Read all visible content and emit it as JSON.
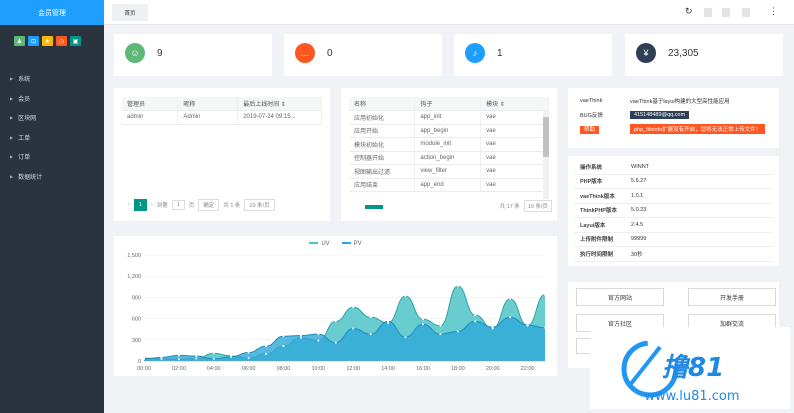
{
  "sidebar": {
    "brand": "会员管理",
    "quick_icons": [
      {
        "name": "user-icon",
        "glyph": "♟",
        "color": "#5fb878"
      },
      {
        "name": "lock-icon",
        "glyph": "⊡",
        "color": "#1e9fff"
      },
      {
        "name": "star-icon",
        "glyph": "★",
        "color": "#ffb800"
      },
      {
        "name": "clock-icon",
        "glyph": "◷",
        "color": "#ff5722"
      },
      {
        "name": "cart-icon",
        "glyph": "▣",
        "color": "#009688"
      }
    ],
    "menu": [
      "系统",
      "会员",
      "区块网",
      "工单",
      "订单",
      "数据统计"
    ]
  },
  "header": {
    "tab": "首页"
  },
  "stats": [
    {
      "value": "9",
      "icon": "user-group-icon",
      "glyph": "☺",
      "color": "#5fb878"
    },
    {
      "value": "0",
      "icon": "message-icon",
      "glyph": "…",
      "color": "#ff5722"
    },
    {
      "value": "1",
      "icon": "bell-icon",
      "glyph": "♪",
      "color": "#1e9fff"
    },
    {
      "value": "23,305",
      "icon": "money-icon",
      "glyph": "¥",
      "color": "#2f4056"
    }
  ],
  "admin_table": {
    "headers": [
      "管理员",
      "昵称",
      "最后上线时间 ⇕"
    ],
    "rows": [
      [
        "admin",
        "Admin",
        "2019-07-24 09:15..."
      ]
    ],
    "pager": {
      "page": "1",
      "goto_label": "到第",
      "page_suffix": "页",
      "confirm": "确定",
      "total": "共 1 条",
      "per_page": "10 条/页"
    }
  },
  "hook_table": {
    "headers": [
      "名称",
      "钩子",
      "模块 ⇕"
    ],
    "rows": [
      [
        "应用初始化",
        "app_init",
        "vae"
      ],
      [
        "应用开始",
        "app_begin",
        "vae"
      ],
      [
        "模块初始化",
        "module_init",
        "vae"
      ],
      [
        "控制器开始",
        "action_begin",
        "vae"
      ],
      [
        "视图输出过滤",
        "view_filter",
        "vae"
      ],
      [
        "应用结束",
        "app_end",
        "vae"
      ]
    ],
    "total": "共 17 条",
    "per_page": "10 条/页"
  },
  "about": {
    "rows": [
      {
        "k": "vaeThink",
        "v": "vaeThink基于layui构建的大型高性能应用",
        "style": "plain"
      },
      {
        "k": "BUG反馈",
        "v": "415148489@qq.com",
        "style": "dark"
      },
      {
        "k": "帮助",
        "v": "php_fileinfo扩展没有开启，您将无法正常上传文件！",
        "style": "red",
        "kstyle": "red"
      }
    ]
  },
  "sysinfo": {
    "rows": [
      [
        "操作系统",
        "WINNT"
      ],
      [
        "PHP版本",
        "5.6.27"
      ],
      [
        "vaeThink版本",
        "1.0.1"
      ],
      [
        "ThinkPHP版本",
        "5.0.23"
      ],
      [
        "Layui版本",
        "2.4.5"
      ],
      [
        "上传附件限制",
        "99999"
      ],
      [
        "执行时间限制",
        "30秒"
      ]
    ]
  },
  "links": [
    "官方网站",
    "开发手册",
    "官方社区",
    "加群交流"
  ],
  "chart_data": {
    "type": "area",
    "series": [
      {
        "name": "UV",
        "color": "#4fc3c7"
      },
      {
        "name": "PV",
        "color": "#2ea8d8"
      }
    ],
    "x": [
      "00:00",
      "01:00",
      "02:00",
      "03:00",
      "04:00",
      "05:00",
      "06:00",
      "07:00",
      "08:00",
      "09:00",
      "10:00",
      "11:00",
      "12:00",
      "13:00",
      "14:00",
      "15:00",
      "16:00",
      "17:00",
      "18:00",
      "19:00",
      "20:00",
      "21:00",
      "22:00",
      "23:00"
    ],
    "xticks": [
      "00:00",
      "02:00",
      "04:00",
      "06:00",
      "08:00",
      "10:00",
      "12:00",
      "14:00",
      "16:00",
      "18:00",
      "20:00",
      "22:00"
    ],
    "uv": [
      40,
      30,
      25,
      35,
      110,
      70,
      40,
      100,
      210,
      330,
      290,
      560,
      760,
      620,
      540,
      920,
      590,
      500,
      1060,
      650,
      460,
      880,
      500,
      940
    ],
    "pv": [
      30,
      50,
      80,
      70,
      30,
      60,
      120,
      210,
      350,
      360,
      380,
      260,
      460,
      380,
      560,
      340,
      520,
      380,
      420,
      560,
      480,
      620,
      510,
      470
    ],
    "ylim": [
      0,
      1500
    ],
    "yticks": [
      "0",
      "300",
      "600",
      "900",
      "1,200",
      "1,500"
    ],
    "grid": true,
    "legend": "top-center"
  },
  "watermark": {
    "text": "撸81",
    "url": "www.lu81.com"
  }
}
